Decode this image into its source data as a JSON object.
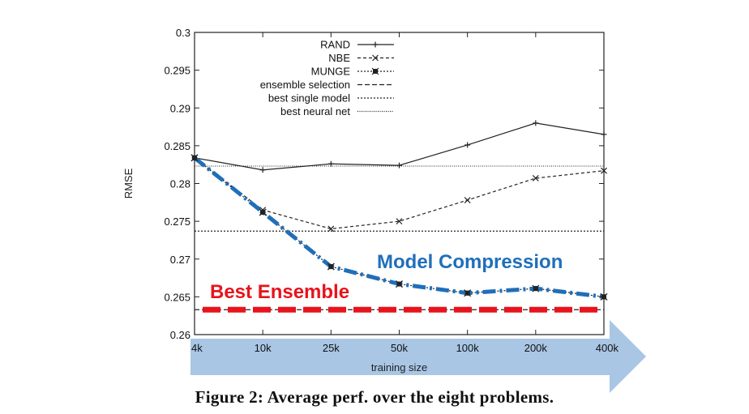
{
  "chart_data": {
    "type": "line",
    "ylabel": "RMSE",
    "xlabel": "training size",
    "categories": [
      "4k",
      "10k",
      "25k",
      "50k",
      "100k",
      "200k",
      "400k"
    ],
    "ylim": [
      0.26,
      0.3
    ],
    "yticks": [
      "0.26",
      "0.265",
      "0.27",
      "0.275",
      "0.28",
      "0.285",
      "0.29",
      "0.295",
      "0.3"
    ],
    "series": [
      {
        "name": "RAND",
        "style": "solid-plus",
        "values": [
          0.2834,
          0.2818,
          0.2826,
          0.2824,
          0.2851,
          0.288,
          0.2865
        ]
      },
      {
        "name": "NBE",
        "style": "dashed-x",
        "values": [
          0.2834,
          0.2765,
          0.274,
          0.275,
          0.2778,
          0.2807,
          0.2817
        ]
      },
      {
        "name": "MUNGE",
        "style": "dotted-star",
        "values": [
          0.2834,
          0.2762,
          0.269,
          0.2667,
          0.2655,
          0.2661,
          0.265
        ]
      }
    ],
    "reference_lines": [
      {
        "name": "ensemble selection",
        "style": "dashed",
        "value": 0.2633
      },
      {
        "name": "best single model",
        "style": "dotted",
        "value": 0.2737
      },
      {
        "name": "best neural net",
        "style": "fine-dotted",
        "value": 0.2823
      }
    ],
    "annotations": {
      "model_compression": {
        "text": "Model Compression",
        "color": "#1f6fba"
      },
      "best_ensemble": {
        "text": "Best Ensemble",
        "color": "#e8131b"
      }
    },
    "legend_placement": "top-center",
    "grid": false
  },
  "caption": "Figure 2:  Average perf. over the eight problems.",
  "colors": {
    "arrow": "#a9c6e5",
    "munge_highlight": "#1f6fba",
    "ensemble_highlight": "#e8131b",
    "lines": "#222222"
  }
}
